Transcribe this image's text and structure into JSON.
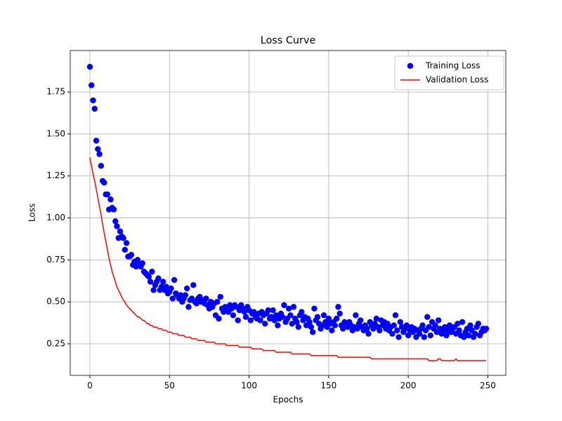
{
  "chart_data": {
    "type": "scatter",
    "title": "Loss Curve",
    "x_label": "Epochs",
    "y_label": "Loss",
    "xlim": [
      -12.35,
      261.3
    ],
    "ylim": [
      0.062,
      1.997
    ],
    "xticks": [
      0,
      50,
      100,
      150,
      200,
      250
    ],
    "yticks": [
      0.25,
      {
        "value": 0.5,
        "label": "0.50"
      },
      0.75,
      {
        "value": 1,
        "label": "1.00"
      },
      1.25,
      {
        "value": 1.5,
        "label": "1.50"
      },
      1.75
    ],
    "grid": true,
    "legend": "upper right",
    "x": [
      0,
      1,
      2,
      3,
      4,
      5,
      6,
      7,
      8,
      9,
      10,
      11,
      12,
      13,
      14,
      15,
      16,
      17,
      18,
      19,
      20,
      21,
      22,
      23,
      24,
      25,
      26,
      27,
      28,
      29,
      30,
      31,
      32,
      33,
      34,
      35,
      36,
      37,
      38,
      39,
      40,
      41,
      42,
      43,
      44,
      45,
      46,
      47,
      48,
      49,
      50,
      51,
      52,
      53,
      54,
      55,
      56,
      57,
      58,
      59,
      60,
      61,
      62,
      63,
      64,
      65,
      66,
      67,
      68,
      69,
      70,
      71,
      72,
      73,
      74,
      75,
      76,
      77,
      78,
      79,
      80,
      81,
      82,
      83,
      84,
      85,
      86,
      87,
      88,
      89,
      90,
      91,
      92,
      93,
      94,
      95,
      96,
      97,
      98,
      99,
      100,
      101,
      102,
      103,
      104,
      105,
      106,
      107,
      108,
      109,
      110,
      111,
      112,
      113,
      114,
      115,
      116,
      117,
      118,
      119,
      120,
      121,
      122,
      123,
      124,
      125,
      126,
      127,
      128,
      129,
      130,
      131,
      132,
      133,
      134,
      135,
      136,
      137,
      138,
      139,
      140,
      141,
      142,
      143,
      144,
      145,
      146,
      147,
      148,
      149,
      150,
      151,
      152,
      153,
      154,
      155,
      156,
      157,
      158,
      159,
      160,
      161,
      162,
      163,
      164,
      165,
      166,
      167,
      168,
      169,
      170,
      171,
      172,
      173,
      174,
      175,
      176,
      177,
      178,
      179,
      180,
      181,
      182,
      183,
      184,
      185,
      186,
      187,
      188,
      189,
      190,
      191,
      192,
      193,
      194,
      195,
      196,
      197,
      198,
      199,
      200,
      201,
      202,
      203,
      204,
      205,
      206,
      207,
      208,
      209,
      210,
      211,
      212,
      213,
      214,
      215,
      216,
      217,
      218,
      219,
      220,
      221,
      222,
      223,
      224,
      225,
      226,
      227,
      228,
      229,
      230,
      231,
      232,
      233,
      234,
      235,
      236,
      237,
      238,
      239,
      240,
      241,
      242,
      243,
      244,
      245,
      246,
      247,
      248,
      249
    ],
    "series": [
      {
        "name": "Training Loss",
        "type": "scatter",
        "color": "#0000ff",
        "values": [
          1.9,
          1.79,
          1.7,
          1.65,
          1.46,
          1.41,
          1.38,
          1.31,
          1.22,
          1.21,
          1.14,
          1.14,
          1.05,
          1.11,
          1.06,
          1.05,
          0.98,
          0.95,
          0.88,
          0.92,
          0.89,
          0.88,
          0.81,
          0.85,
          0.77,
          0.77,
          0.78,
          0.72,
          0.74,
          0.71,
          0.75,
          0.72,
          0.71,
          0.73,
          0.68,
          0.67,
          0.66,
          0.65,
          0.62,
          0.68,
          0.57,
          0.6,
          0.62,
          0.64,
          0.57,
          0.59,
          0.62,
          0.57,
          0.59,
          0.55,
          0.56,
          0.58,
          0.52,
          0.63,
          0.55,
          0.54,
          0.52,
          0.54,
          0.5,
          0.52,
          0.54,
          0.58,
          0.47,
          0.51,
          0.52,
          0.6,
          0.5,
          0.49,
          0.52,
          0.53,
          0.5,
          0.51,
          0.49,
          0.52,
          0.48,
          0.46,
          0.5,
          0.47,
          0.49,
          0.42,
          0.5,
          0.4,
          0.53,
          0.46,
          0.44,
          0.47,
          0.45,
          0.44,
          0.48,
          0.46,
          0.42,
          0.48,
          0.47,
          0.39,
          0.45,
          0.48,
          0.46,
          0.44,
          0.41,
          0.47,
          0.45,
          0.39,
          0.43,
          0.44,
          0.41,
          0.4,
          0.43,
          0.39,
          0.44,
          0.42,
          0.37,
          0.43,
          0.45,
          0.4,
          0.41,
          0.45,
          0.39,
          0.42,
          0.36,
          0.4,
          0.43,
          0.41,
          0.48,
          0.38,
          0.4,
          0.46,
          0.42,
          0.37,
          0.47,
          0.4,
          0.38,
          0.35,
          0.42,
          0.44,
          0.39,
          0.41,
          0.36,
          0.4,
          0.38,
          0.35,
          0.32,
          0.46,
          0.39,
          0.41,
          0.37,
          0.34,
          0.36,
          0.42,
          0.38,
          0.35,
          0.4,
          0.37,
          0.33,
          0.38,
          0.36,
          0.4,
          0.47,
          0.43,
          0.36,
          0.34,
          0.38,
          0.37,
          0.35,
          0.38,
          0.36,
          0.33,
          0.35,
          0.42,
          0.34,
          0.37,
          0.39,
          0.35,
          0.33,
          0.36,
          0.34,
          0.31,
          0.38,
          0.36,
          0.34,
          0.37,
          0.4,
          0.35,
          0.33,
          0.39,
          0.36,
          0.38,
          0.34,
          0.37,
          0.33,
          0.35,
          0.31,
          0.36,
          0.42,
          0.33,
          0.29,
          0.38,
          0.35,
          0.32,
          0.34,
          0.36,
          0.3,
          0.33,
          0.35,
          0.32,
          0.34,
          0.29,
          0.33,
          0.31,
          0.34,
          0.36,
          0.29,
          0.33,
          0.41,
          0.35,
          0.3,
          0.38,
          0.34,
          0.36,
          0.32,
          0.39,
          0.34,
          0.31,
          0.33,
          0.35,
          0.3,
          0.33,
          0.36,
          0.32,
          0.34,
          0.35,
          0.31,
          0.37,
          0.33,
          0.3,
          0.38,
          0.29,
          0.32,
          0.34,
          0.3,
          0.36,
          0.33,
          0.29,
          0.31,
          0.35,
          0.37,
          0.3,
          0.32,
          0.34,
          0.33,
          0.34
        ]
      },
      {
        "name": "Validation Loss",
        "type": "line",
        "color": "#ff0000",
        "values": [
          1.36,
          1.31,
          1.26,
          1.22,
          1.17,
          1.12,
          1.07,
          1.02,
          0.96,
          0.91,
          0.86,
          0.81,
          0.76,
          0.72,
          0.68,
          0.65,
          0.62,
          0.59,
          0.57,
          0.55,
          0.53,
          0.51,
          0.5,
          0.48,
          0.47,
          0.46,
          0.45,
          0.44,
          0.43,
          0.42,
          0.41,
          0.41,
          0.4,
          0.39,
          0.39,
          0.38,
          0.37,
          0.37,
          0.36,
          0.36,
          0.35,
          0.35,
          0.35,
          0.34,
          0.34,
          0.34,
          0.33,
          0.33,
          0.33,
          0.32,
          0.32,
          0.32,
          0.31,
          0.31,
          0.31,
          0.31,
          0.3,
          0.3,
          0.3,
          0.3,
          0.29,
          0.29,
          0.29,
          0.29,
          0.28,
          0.28,
          0.28,
          0.28,
          0.27,
          0.27,
          0.27,
          0.27,
          0.27,
          0.26,
          0.26,
          0.26,
          0.26,
          0.26,
          0.26,
          0.25,
          0.25,
          0.25,
          0.25,
          0.25,
          0.25,
          0.25,
          0.24,
          0.24,
          0.24,
          0.24,
          0.24,
          0.24,
          0.24,
          0.24,
          0.23,
          0.23,
          0.23,
          0.23,
          0.23,
          0.23,
          0.23,
          0.23,
          0.22,
          0.22,
          0.22,
          0.22,
          0.22,
          0.22,
          0.22,
          0.21,
          0.21,
          0.21,
          0.21,
          0.21,
          0.21,
          0.21,
          0.21,
          0.2,
          0.2,
          0.2,
          0.2,
          0.2,
          0.2,
          0.2,
          0.2,
          0.2,
          0.2,
          0.19,
          0.19,
          0.19,
          0.19,
          0.19,
          0.19,
          0.19,
          0.19,
          0.19,
          0.19,
          0.19,
          0.19,
          0.18,
          0.18,
          0.18,
          0.18,
          0.18,
          0.18,
          0.18,
          0.18,
          0.18,
          0.18,
          0.18,
          0.18,
          0.18,
          0.18,
          0.18,
          0.18,
          0.18,
          0.17,
          0.17,
          0.17,
          0.17,
          0.17,
          0.17,
          0.17,
          0.17,
          0.17,
          0.17,
          0.17,
          0.17,
          0.17,
          0.17,
          0.17,
          0.17,
          0.17,
          0.17,
          0.17,
          0.17,
          0.17,
          0.16,
          0.16,
          0.16,
          0.16,
          0.16,
          0.16,
          0.16,
          0.16,
          0.16,
          0.16,
          0.16,
          0.16,
          0.16,
          0.16,
          0.16,
          0.16,
          0.16,
          0.16,
          0.16,
          0.16,
          0.16,
          0.16,
          0.16,
          0.16,
          0.16,
          0.16,
          0.16,
          0.16,
          0.16,
          0.16,
          0.16,
          0.16,
          0.16,
          0.16,
          0.16,
          0.16,
          0.15,
          0.15,
          0.15,
          0.15,
          0.15,
          0.15,
          0.16,
          0.16,
          0.15,
          0.15,
          0.15,
          0.15,
          0.15,
          0.15,
          0.15,
          0.15,
          0.15,
          0.16,
          0.15,
          0.15,
          0.15,
          0.15,
          0.15,
          0.15,
          0.15,
          0.15,
          0.15,
          0.15,
          0.15,
          0.15,
          0.15,
          0.15,
          0.15,
          0.15,
          0.15,
          0.15,
          0.15
        ]
      }
    ]
  }
}
